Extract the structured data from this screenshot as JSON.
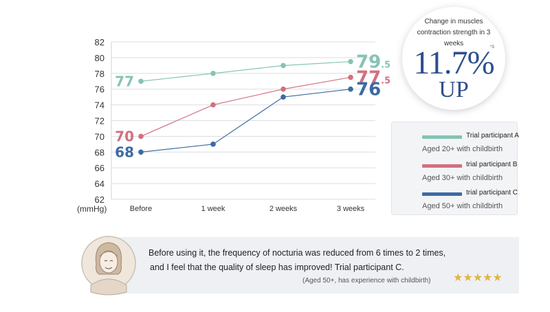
{
  "chart_data": {
    "type": "line",
    "categories": [
      "Before",
      "1 week",
      "2 weeks",
      "3 weeks"
    ],
    "ylabel": "(mmHg)",
    "ylim": [
      62,
      82
    ],
    "yticks": [
      62,
      64,
      66,
      68,
      70,
      72,
      74,
      76,
      78,
      80,
      82
    ],
    "grid": true,
    "series": [
      {
        "name": "Trial participant A",
        "description": "Aged 20+ with childbirth",
        "color": "#86c3b5",
        "values": [
          77,
          78,
          79,
          79.5
        ],
        "start_label": "77",
        "end_label": {
          "int": "79",
          "frac": ".5"
        }
      },
      {
        "name": "trial participant B",
        "description": "Aged 30+ with childbirth",
        "color": "#d2707f",
        "values": [
          70,
          74,
          76,
          77.5
        ],
        "start_label": "70",
        "end_label": {
          "int": "77",
          "frac": ".5"
        }
      },
      {
        "name": "trial participant C",
        "description": "Aged 50+ with childbirth",
        "color": "#3d6aa3",
        "values": [
          68,
          69,
          75,
          76
        ],
        "start_label": "68",
        "end_label": {
          "int": "76",
          "frac": ""
        }
      }
    ]
  },
  "badge": {
    "caption": "Change in muscles contraction strength in 3 weeks",
    "percent": "11.7%",
    "note": "*3",
    "direction": "UP"
  },
  "testimonial": {
    "line1": "Before using it, the frequency of nocturia was reduced from 6 times to 2 times,",
    "line2": "and I feel that the quality of sleep has improved! Trial participant C.",
    "attribution": "(Aged 50+, has experience with childbirth)",
    "stars": "★★★★★",
    "rating": 5
  }
}
